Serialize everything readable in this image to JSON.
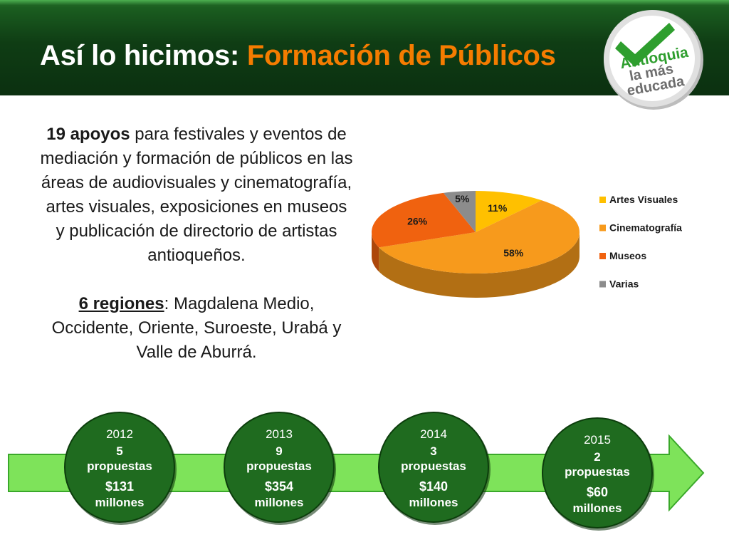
{
  "header": {
    "title_main": "Así lo hicimos: ",
    "title_accent": "Formación de Públicos",
    "logo_text": [
      "Antioquia",
      "la más",
      "educada"
    ]
  },
  "description": {
    "p1_bold": "19 apoyos",
    "p1_rest": " para festivales y eventos de mediación y formación de públicos en las áreas de audiovisuales y cinematografía, artes visuales, exposiciones en museos y publicación de directorio de artistas antioqueños.",
    "p2_ul": "6 regiones",
    "p2_rest": ": Magdalena Medio, Occidente, Oriente, Suroeste, Urabá y Valle de Aburrá."
  },
  "chart_data": {
    "type": "pie",
    "categories": [
      "Artes Visuales",
      "Cinematografía",
      "Museos",
      "Varias"
    ],
    "values": [
      11,
      58,
      26,
      5
    ],
    "labels": [
      "11%",
      "58%",
      "26%",
      "5%"
    ],
    "colors": [
      "#ffc000",
      "#f79a1c",
      "#f0620f",
      "#8c8c8c"
    ],
    "legend_position": "right"
  },
  "timeline": [
    {
      "year": "2012",
      "count": "5",
      "unit": "propuestas",
      "amount": "$131",
      "amount_unit": "millones"
    },
    {
      "year": "2013",
      "count": "9",
      "unit": "propuestas",
      "amount": "$354",
      "amount_unit": "millones"
    },
    {
      "year": "2014",
      "count": "3",
      "unit": "propuestas",
      "amount": "$140",
      "amount_unit": "millones"
    },
    {
      "year": "2015",
      "count": "2",
      "unit": "propuestas",
      "amount": "$60",
      "amount_unit": "millones"
    }
  ],
  "colors": {
    "header_green": "#0f3d14",
    "accent_orange": "#f57c00",
    "arrow_green": "#7ee35a",
    "circle_green": "#1f6b1f"
  }
}
